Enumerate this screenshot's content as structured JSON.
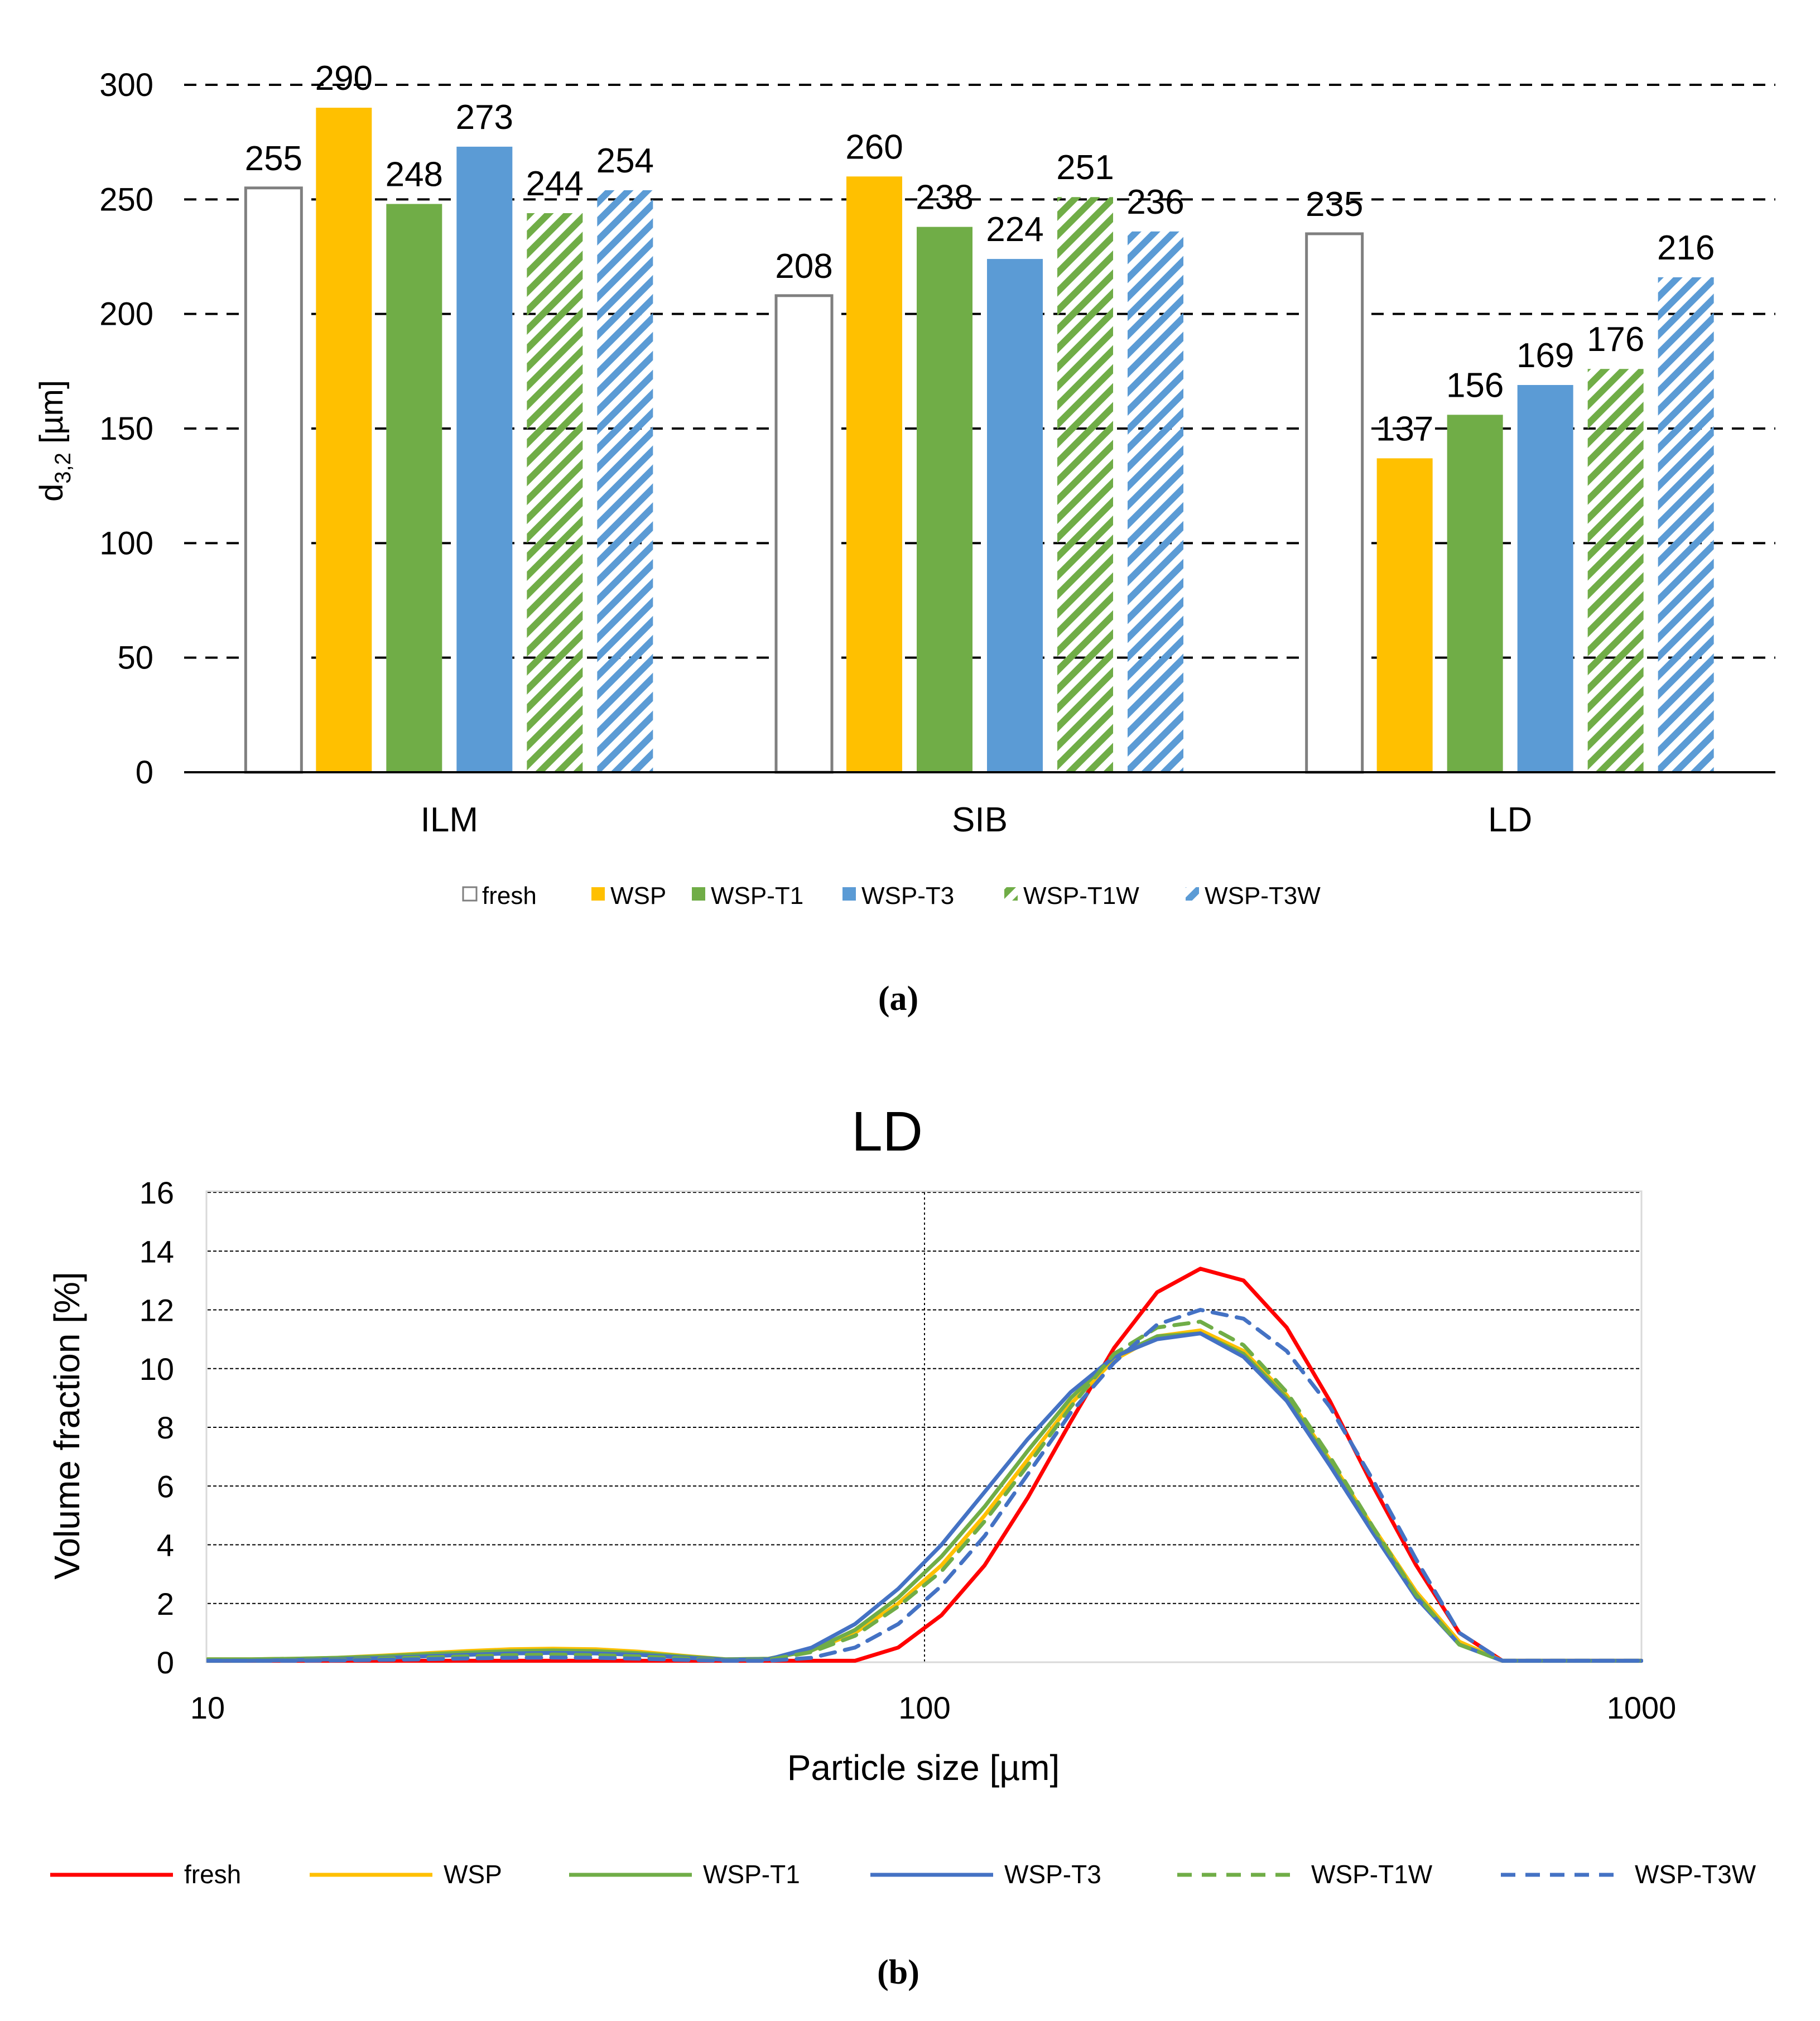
{
  "colors": {
    "fresh_bar_stroke": "#7f7f7f",
    "fresh_line": "#ff0000",
    "WSP": "#ffc000",
    "WSP-T1": "#70ad47",
    "WSP-T3": "#5b9bd5",
    "WSP-T3_line": "#4472c4",
    "grid": "#000000"
  },
  "chart_data": [
    {
      "type": "bar",
      "panel_label": "(a)",
      "categories": [
        "ILM",
        "SIB",
        "LD"
      ],
      "series": [
        {
          "name": "fresh",
          "style": "hollow",
          "values": [
            255,
            208,
            235
          ]
        },
        {
          "name": "WSP",
          "style": "solid",
          "values": [
            290,
            260,
            137
          ]
        },
        {
          "name": "WSP-T1",
          "style": "solid",
          "values": [
            248,
            238,
            156
          ]
        },
        {
          "name": "WSP-T3",
          "style": "solid",
          "values": [
            273,
            224,
            169
          ]
        },
        {
          "name": "WSP-T1W",
          "style": "hatched",
          "values": [
            244,
            251,
            176
          ]
        },
        {
          "name": "WSP-T3W",
          "style": "hatched",
          "values": [
            254,
            236,
            216
          ]
        }
      ],
      "ylabel_main": "d",
      "ylabel_sub": "3,2",
      "ylabel_unit": " [µm]",
      "xlabel": "",
      "ylim": [
        0,
        300
      ],
      "yticks": [
        0,
        50,
        100,
        150,
        200,
        250,
        300
      ],
      "grid": "horizontal dashed",
      "legend_position": "bottom"
    },
    {
      "type": "line",
      "panel_label": "(b)",
      "title": "LD",
      "xlabel": "Particle size [µm]",
      "ylabel": "Volume fraction [%]",
      "xscale": "log",
      "xlim": [
        10,
        1000
      ],
      "ylim": [
        0,
        16
      ],
      "xticks": [
        "10",
        "100",
        "1000"
      ],
      "yticks": [
        0,
        2,
        4,
        6,
        8,
        10,
        12,
        14,
        16
      ],
      "x": [
        10,
        11.5,
        13.2,
        15.1,
        17.4,
        20,
        23,
        26.4,
        30.3,
        34.8,
        40,
        46,
        52.8,
        60.6,
        69.6,
        80,
        91.9,
        105.6,
        121.3,
        139.3,
        160,
        183.8,
        211.1,
        242.5,
        278.6,
        320,
        367.6,
        422.3,
        485,
        557.2,
        640,
        735.2,
        844.5,
        970,
        1000
      ],
      "series": [
        {
          "name": "fresh",
          "dash": "solid",
          "values": [
            0.05,
            0.05,
            0.05,
            0.05,
            0.05,
            0.05,
            0.05,
            0.05,
            0.05,
            0.05,
            0.05,
            0.05,
            0.05,
            0.05,
            0.05,
            0.05,
            0.5,
            1.6,
            3.3,
            5.6,
            8.2,
            10.7,
            12.6,
            13.4,
            13.0,
            11.4,
            8.9,
            6.0,
            3.3,
            1.0,
            0.05,
            0.05,
            0.05,
            0.05,
            0.05
          ]
        },
        {
          "name": "WSP",
          "dash": "solid",
          "values": [
            0.1,
            0.1,
            0.12,
            0.15,
            0.22,
            0.3,
            0.38,
            0.44,
            0.46,
            0.44,
            0.36,
            0.22,
            0.1,
            0.12,
            0.4,
            1.0,
            2.0,
            3.3,
            5.0,
            6.9,
            8.8,
            10.3,
            11.1,
            11.3,
            10.6,
            9.1,
            6.9,
            4.6,
            2.4,
            0.7,
            0.05,
            0.05,
            0.05,
            0.05,
            0.05
          ]
        },
        {
          "name": "WSP-T1",
          "dash": "solid",
          "values": [
            0.1,
            0.1,
            0.12,
            0.15,
            0.2,
            0.27,
            0.33,
            0.38,
            0.4,
            0.38,
            0.31,
            0.2,
            0.1,
            0.12,
            0.4,
            1.1,
            2.2,
            3.6,
            5.3,
            7.2,
            9.0,
            10.4,
            11.1,
            11.2,
            10.5,
            9.0,
            6.8,
            4.5,
            2.3,
            0.6,
            0.05,
            0.05,
            0.05,
            0.05,
            0.05
          ]
        },
        {
          "name": "WSP-T3",
          "dash": "solid",
          "values": [
            0.05,
            0.05,
            0.07,
            0.1,
            0.14,
            0.2,
            0.25,
            0.3,
            0.32,
            0.3,
            0.25,
            0.16,
            0.08,
            0.1,
            0.5,
            1.3,
            2.5,
            4.0,
            5.8,
            7.6,
            9.2,
            10.4,
            11.0,
            11.2,
            10.4,
            8.9,
            6.7,
            4.4,
            2.2,
            0.6,
            0.05,
            0.05,
            0.05,
            0.05,
            0.05
          ]
        },
        {
          "name": "WSP-T1W",
          "dash": "dashed",
          "values": [
            0.05,
            0.05,
            0.06,
            0.08,
            0.12,
            0.16,
            0.2,
            0.24,
            0.26,
            0.24,
            0.2,
            0.13,
            0.06,
            0.08,
            0.35,
            0.9,
            1.9,
            3.1,
            4.8,
            6.7,
            8.7,
            10.5,
            11.4,
            11.6,
            10.8,
            9.2,
            7.0,
            4.6,
            2.3,
            0.6,
            0.05,
            0.05,
            0.05,
            0.05,
            0.05
          ]
        },
        {
          "name": "WSP-T3W",
          "dash": "dashed",
          "values": [
            0.05,
            0.05,
            0.05,
            0.06,
            0.08,
            0.1,
            0.13,
            0.15,
            0.16,
            0.15,
            0.12,
            0.08,
            0.05,
            0.05,
            0.15,
            0.5,
            1.3,
            2.6,
            4.3,
            6.4,
            8.5,
            10.2,
            11.5,
            12.0,
            11.7,
            10.6,
            8.7,
            6.2,
            3.5,
            1.0,
            0.05,
            0.05,
            0.05,
            0.05,
            0.05
          ]
        }
      ],
      "legend_position": "bottom"
    }
  ]
}
